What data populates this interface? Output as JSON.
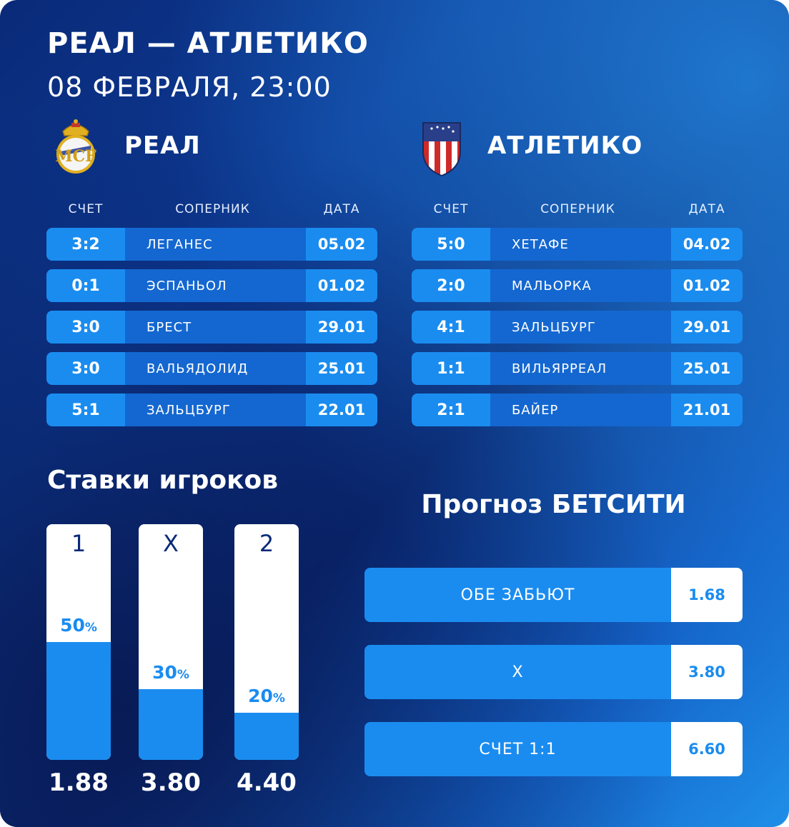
{
  "header": {
    "title": "РЕАЛ — АТЛЕТИКО",
    "datetime": "08 ФЕВРАЛЯ, 23:00"
  },
  "teams": [
    {
      "name": "РЕАЛ",
      "logo": "real-madrid-crest-icon",
      "columns": [
        "СЧЕТ",
        "СОПЕРНИК",
        "ДАТА"
      ],
      "matches": [
        {
          "score": "3:2",
          "opponent": "ЛЕГАНЕС",
          "date": "05.02"
        },
        {
          "score": "0:1",
          "opponent": "ЭСПАНЬОЛ",
          "date": "01.02"
        },
        {
          "score": "3:0",
          "opponent": "БРЕСТ",
          "date": "29.01"
        },
        {
          "score": "3:0",
          "opponent": "ВАЛЬЯДОЛИД",
          "date": "25.01"
        },
        {
          "score": "5:1",
          "opponent": "ЗАЛЬЦБУРГ",
          "date": "22.01"
        }
      ]
    },
    {
      "name": "АТЛЕТИКО",
      "logo": "atletico-crest-icon",
      "columns": [
        "СЧЕТ",
        "СОПЕРНИК",
        "ДАТА"
      ],
      "matches": [
        {
          "score": "5:0",
          "opponent": "ХЕТАФЕ",
          "date": "04.02"
        },
        {
          "score": "2:0",
          "opponent": "МАЛЬОРКА",
          "date": "01.02"
        },
        {
          "score": "4:1",
          "opponent": "ЗАЛЬЦБУРГ",
          "date": "29.01"
        },
        {
          "score": "1:1",
          "opponent": "ВИЛЬЯРРЕАЛ",
          "date": "25.01"
        },
        {
          "score": "2:1",
          "opponent": "БАЙЕР",
          "date": "21.01"
        }
      ]
    }
  ],
  "player_bets": {
    "title": "Ставки игроков",
    "items": [
      {
        "label": "1",
        "percent": 50,
        "percent_text": "50",
        "odds": "1.88"
      },
      {
        "label": "X",
        "percent": 30,
        "percent_text": "30",
        "odds": "3.80"
      },
      {
        "label": "2",
        "percent": 20,
        "percent_text": "20",
        "odds": "4.40"
      }
    ],
    "percent_sign": "%"
  },
  "forecast": {
    "title": "Прогноз БЕТСИТИ",
    "items": [
      {
        "name": "ОБЕ ЗАБЬЮТ",
        "value": "1.68"
      },
      {
        "name": "X",
        "value": "3.80"
      },
      {
        "name": "СЧЕТ 1:1",
        "value": "6.60"
      }
    ]
  },
  "colors": {
    "accent": "#1a8cf0",
    "row_mid": "#1467d0",
    "dark": "#0a2a78"
  }
}
